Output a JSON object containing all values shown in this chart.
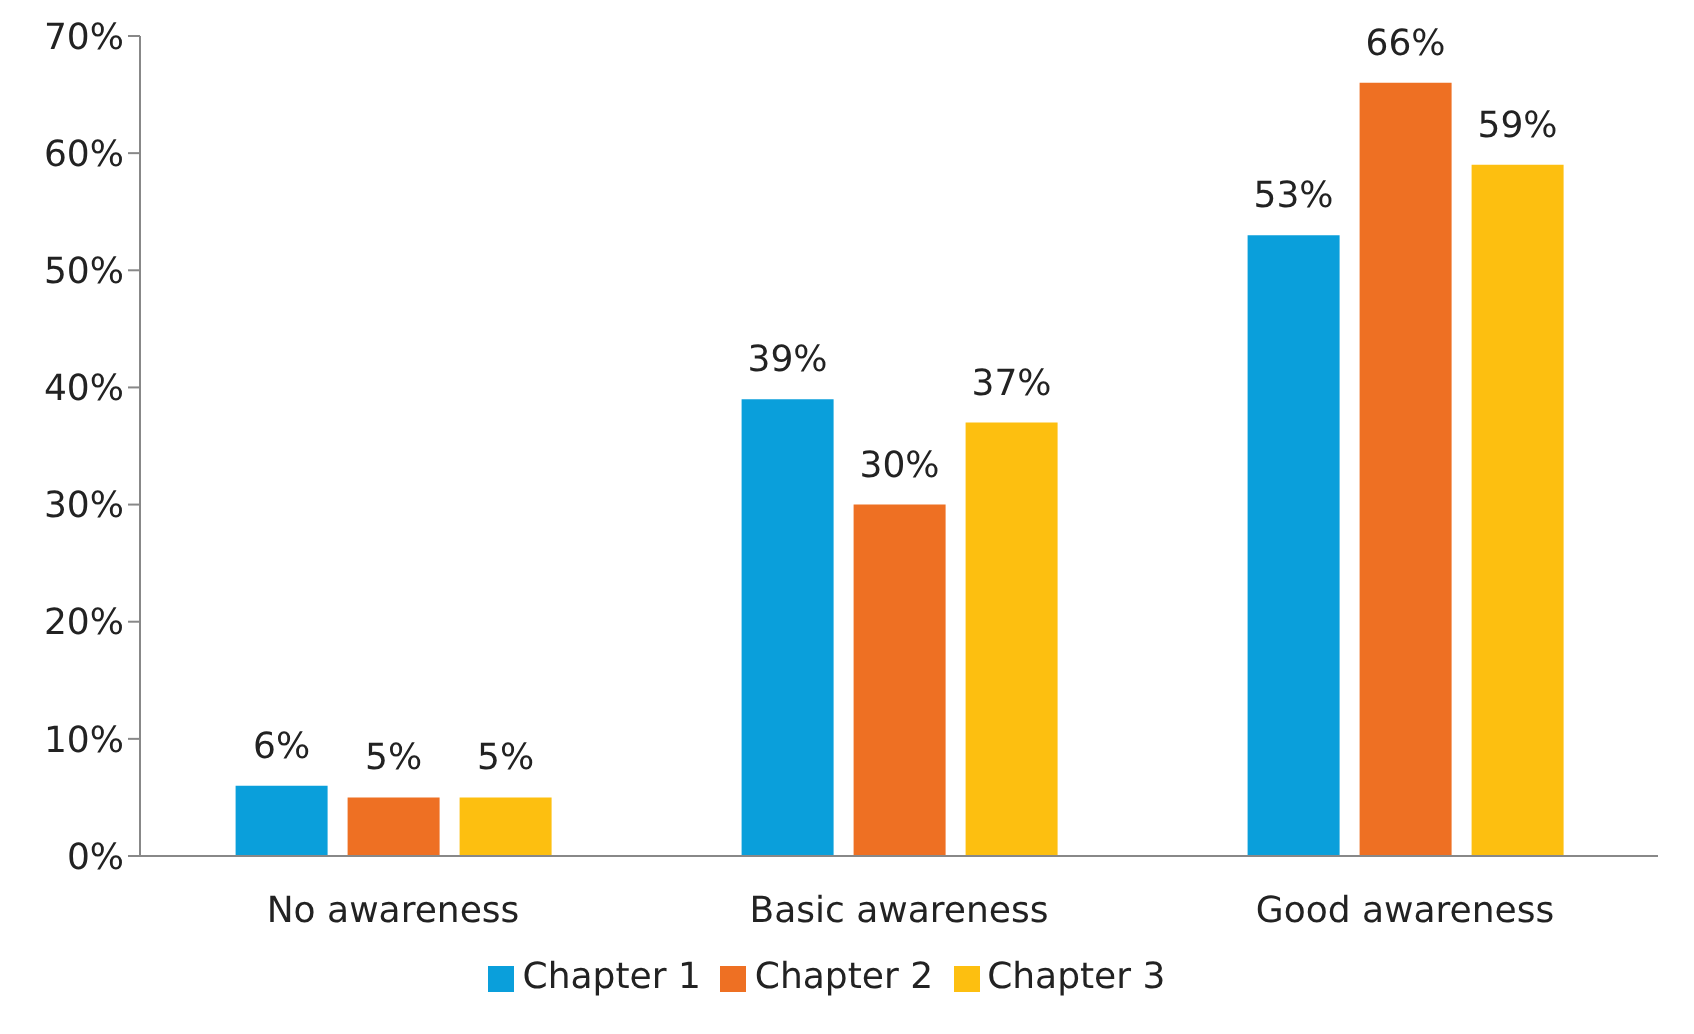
{
  "chart_data": {
    "type": "bar",
    "categories": [
      "No awareness",
      "Basic awareness",
      "Good awareness"
    ],
    "series": [
      {
        "name": "Chapter 1",
        "color": "#0a9fdb",
        "values": [
          6,
          39,
          53
        ],
        "value_labels": [
          "6%",
          "39%",
          "53%"
        ]
      },
      {
        "name": "Chapter 2",
        "color": "#ee7023",
        "values": [
          5,
          30,
          66
        ],
        "value_labels": [
          "5%",
          "30%",
          "66%"
        ]
      },
      {
        "name": "Chapter 3",
        "color": "#fdbf10",
        "values": [
          5,
          37,
          59
        ],
        "value_labels": [
          "5%",
          "37%",
          "59%"
        ]
      }
    ],
    "ylim": [
      0,
      70
    ],
    "yticks": [
      {
        "value": 0,
        "label": "0%"
      },
      {
        "value": 10,
        "label": "10%"
      },
      {
        "value": 20,
        "label": "20%"
      },
      {
        "value": 30,
        "label": "30%"
      },
      {
        "value": 40,
        "label": "40%"
      },
      {
        "value": 50,
        "label": "50%"
      },
      {
        "value": 60,
        "label": "60%"
      },
      {
        "value": 70,
        "label": "70%"
      }
    ],
    "grid": false,
    "legend": "bottom"
  }
}
